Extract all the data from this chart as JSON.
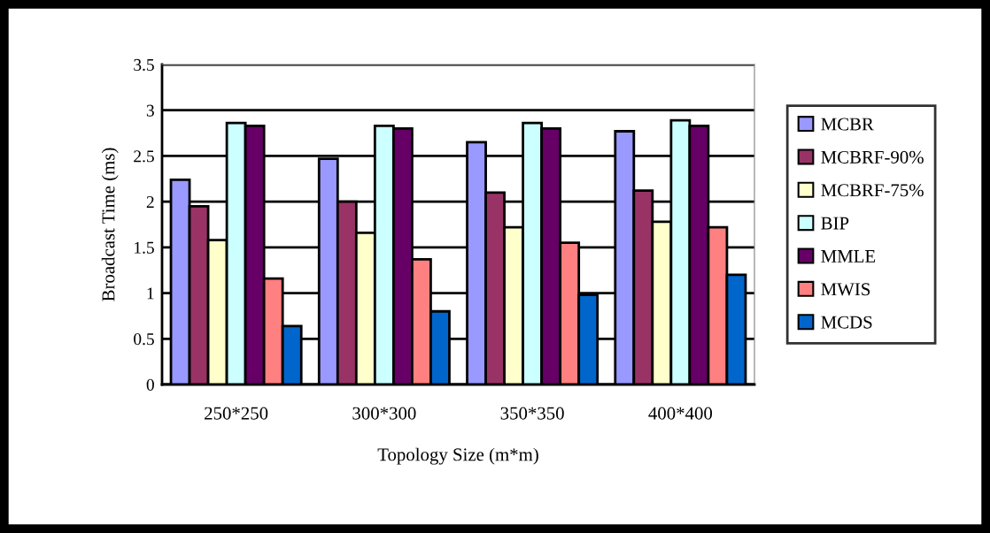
{
  "chart_data": {
    "type": "bar",
    "xlabel": "Topology Size (m*m)",
    "ylabel": "Broadcast Time (ms)",
    "categories": [
      "250*250",
      "300*300",
      "350*350",
      "400*400"
    ],
    "series": [
      {
        "name": "MCBR",
        "color": "#9999ff",
        "values": [
          2.24,
          2.47,
          2.65,
          2.77
        ]
      },
      {
        "name": "MCBRF-90%",
        "color": "#993366",
        "values": [
          1.95,
          2.0,
          2.1,
          2.12
        ]
      },
      {
        "name": "MCBRF-75%",
        "color": "#ffffcc",
        "values": [
          1.58,
          1.66,
          1.72,
          1.78
        ]
      },
      {
        "name": "BIP",
        "color": "#ccffff",
        "values": [
          2.86,
          2.83,
          2.86,
          2.89
        ]
      },
      {
        "name": "MMLE",
        "color": "#660066",
        "values": [
          2.83,
          2.8,
          2.8,
          2.83
        ]
      },
      {
        "name": "MWIS",
        "color": "#ff8080",
        "values": [
          1.16,
          1.37,
          1.55,
          1.72
        ]
      },
      {
        "name": "MCDS",
        "color": "#0066cc",
        "values": [
          0.64,
          0.8,
          0.98,
          1.2
        ]
      }
    ],
    "ylim": [
      0,
      3.5
    ],
    "yticks": [
      0,
      0.5,
      1,
      1.5,
      2,
      2.5,
      3,
      3.5
    ],
    "grid": "y",
    "legend": "right"
  }
}
